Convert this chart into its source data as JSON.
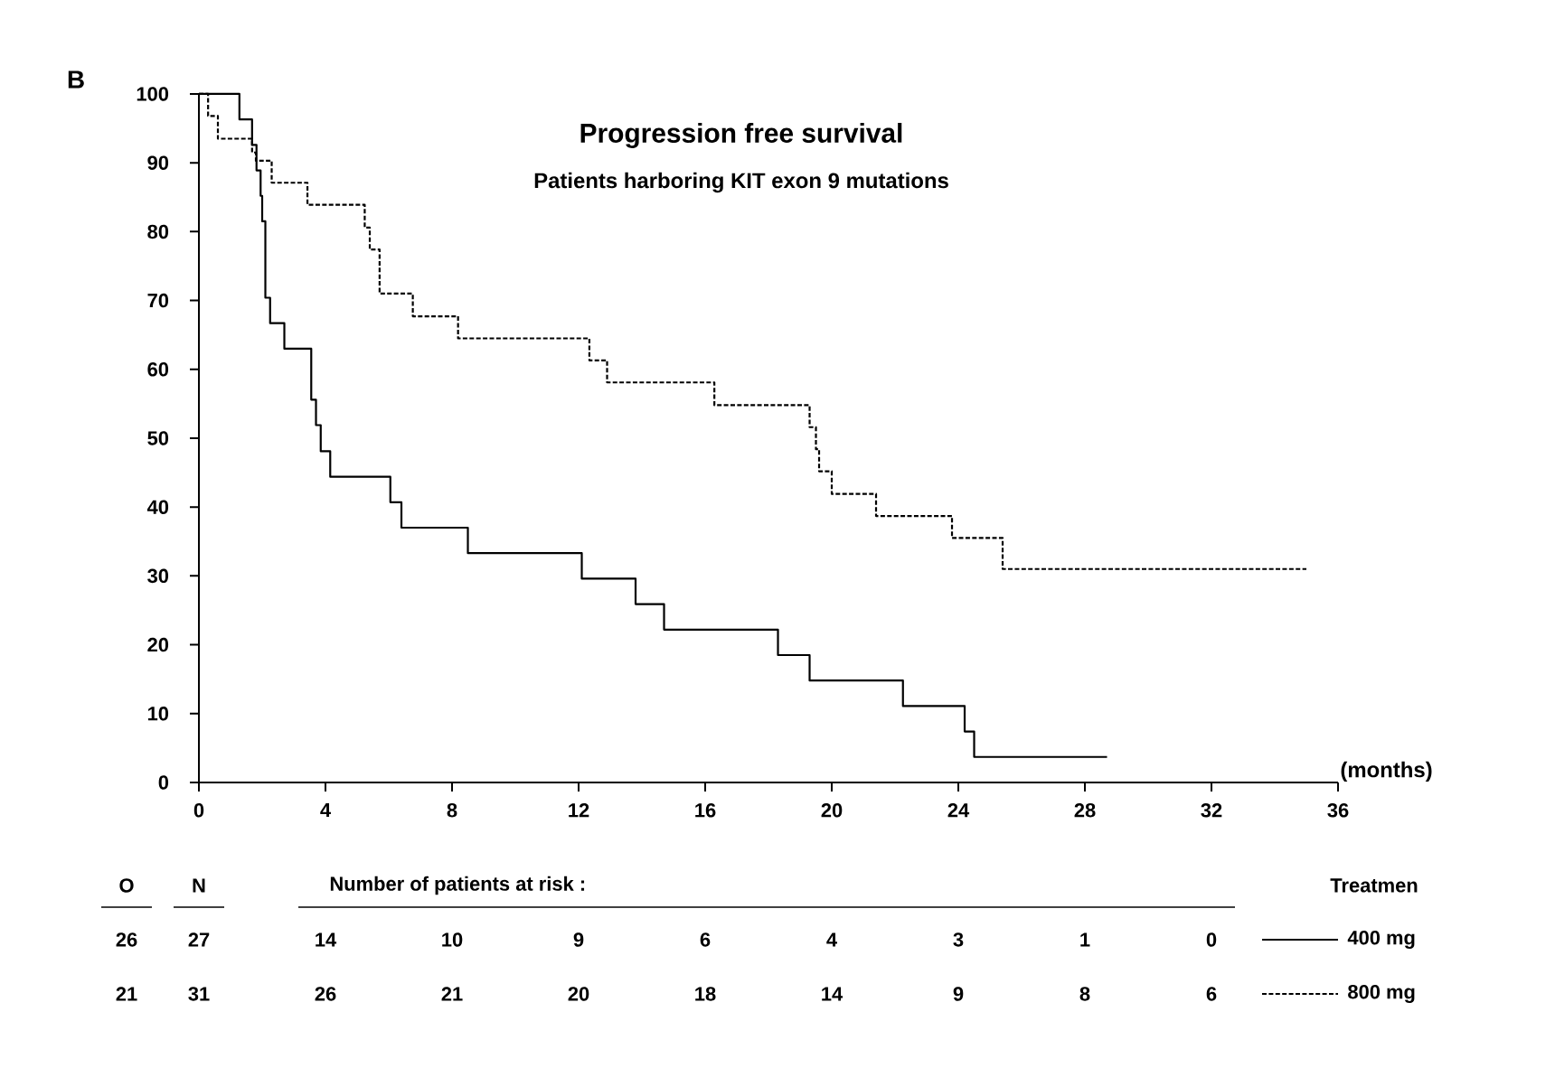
{
  "chart_data": {
    "type": "step",
    "title": "Progression free survival",
    "subtitle": "Patients harboring KIT exon 9 mutations",
    "xlabel": "(months)",
    "legend_title": "Treatmen",
    "legend": "bottom right",
    "xlim": [
      0,
      36
    ],
    "ylim": [
      0,
      100
    ],
    "xticks": [
      0,
      4,
      8,
      12,
      16,
      20,
      24,
      28,
      32,
      36
    ],
    "yticks": [
      0,
      10,
      20,
      30,
      40,
      50,
      60,
      70,
      80,
      90,
      100
    ],
    "series": [
      {
        "name": "400 mg",
        "color": "#000000",
        "line_style": "solid",
        "x": [
          0,
          1.28,
          1.68,
          1.82,
          1.95,
          2.0,
          2.1,
          2.25,
          2.7,
          3.55,
          3.7,
          3.85,
          4.15,
          6.05,
          6.4,
          8.5,
          12.1,
          13.8,
          14.7,
          18.3,
          19.3,
          22.25,
          24.2,
          24.5,
          28.7
        ],
        "values": [
          100,
          96.3,
          92.6,
          88.9,
          85.2,
          81.5,
          70.4,
          66.7,
          63.0,
          55.6,
          51.9,
          48.1,
          44.4,
          40.7,
          37.0,
          33.3,
          29.6,
          25.9,
          22.2,
          18.5,
          14.8,
          11.1,
          7.4,
          3.7,
          3.7
        ]
      },
      {
        "name": "800 mg",
        "color": "#000000",
        "line_style": "dashed",
        "x": [
          0,
          0.29,
          0.6,
          1.68,
          1.8,
          2.3,
          3.43,
          5.24,
          5.4,
          5.71,
          6.76,
          8.19,
          12.34,
          12.9,
          16.29,
          19.3,
          19.5,
          19.6,
          20.0,
          21.4,
          23.8,
          25.4,
          35.0
        ],
        "values": [
          100,
          96.8,
          93.5,
          91.5,
          90.3,
          87.1,
          83.9,
          80.6,
          77.4,
          71.0,
          67.7,
          64.5,
          61.3,
          58.1,
          54.8,
          51.6,
          48.4,
          45.2,
          41.9,
          38.7,
          35.5,
          31.0,
          31.0
        ]
      }
    ],
    "annotations": [
      "B",
      "Number of patients at risk :",
      "O",
      "N",
      "26",
      "27",
      "14",
      "10",
      "9",
      "6",
      "4",
      "3",
      "1",
      "0",
      "21",
      "31",
      "26",
      "21",
      "20",
      "18",
      "14",
      "9",
      "8",
      "6"
    ]
  }
}
